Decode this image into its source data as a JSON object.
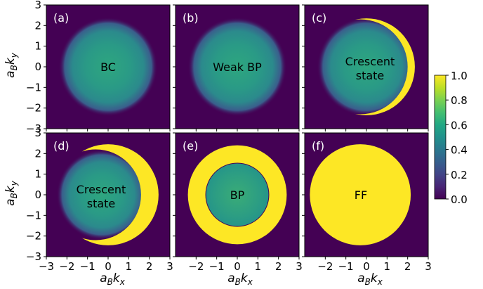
{
  "chart_data": [
    {
      "type": "heatmap",
      "panel_label": "(a)",
      "annotation": [
        "BC"
      ],
      "xlim": [
        -3,
        3
      ],
      "ylim": [
        -3,
        3
      ],
      "pattern": "gaussian disk centered at origin, no saturated region",
      "disk": {
        "center": [
          0,
          0
        ],
        "radius": 2.4,
        "center_value": 0.33
      }
    },
    {
      "type": "heatmap",
      "panel_label": "(b)",
      "annotation": [
        "Weak BP"
      ],
      "xlim": [
        -3,
        3
      ],
      "ylim": [
        -3,
        3
      ],
      "pattern": "gaussian disk centered at origin, no saturated region",
      "disk": {
        "center": [
          0,
          0
        ],
        "radius": 2.4,
        "center_value": 0.33
      }
    },
    {
      "type": "heatmap",
      "panel_label": "(c)",
      "annotation": [
        "Crescent",
        "state"
      ],
      "xlim": [
        -3,
        3
      ],
      "ylim": [
        -3,
        3
      ],
      "pattern": "gaussian disk with small saturated sliver on the right edge",
      "disk": {
        "center": [
          0,
          0
        ],
        "radius": 2.4,
        "center_value": 0.33
      },
      "saturated_region": {
        "kind": "crescent",
        "outer_radius": 2.35,
        "inner_circle_center": [
          -0.3,
          0
        ],
        "inner_radius": 2.3,
        "value": 1.0
      }
    },
    {
      "type": "heatmap",
      "panel_label": "(d)",
      "annotation": [
        "Crescent",
        "state"
      ],
      "xlim": [
        -3,
        3
      ],
      "ylim": [
        -3,
        3
      ],
      "pattern": "gaussian disk with large saturated crescent on the right side",
      "disk": {
        "center": [
          -0.3,
          0
        ],
        "radius": 2.2,
        "center_value": 0.4
      },
      "saturated_region": {
        "kind": "crescent",
        "outer_radius": 2.45,
        "inner_circle_center": [
          -0.6,
          0
        ],
        "inner_radius": 2.2,
        "value": 1.0
      }
    },
    {
      "type": "heatmap",
      "panel_label": "(e)",
      "annotation": [
        "BP"
      ],
      "xlim": [
        -3,
        3
      ],
      "ylim": [
        -3,
        3
      ],
      "pattern": "saturated ring surrounding a lower-valued core",
      "disk": {
        "center": [
          0,
          0
        ],
        "radius": 1.5,
        "center_value": 0.45
      },
      "saturated_region": {
        "kind": "ring",
        "inner_radius": 1.55,
        "outer_radius": 2.4,
        "value": 1.0
      }
    },
    {
      "type": "heatmap",
      "panel_label": "(f)",
      "annotation": [
        "FF"
      ],
      "xlim": [
        -3,
        3
      ],
      "ylim": [
        -3,
        3
      ],
      "pattern": "fully saturated disk centered slightly left of origin",
      "saturated_region": {
        "kind": "disk",
        "center": [
          -0.3,
          0
        ],
        "radius": 2.45,
        "value": 1.0
      }
    }
  ],
  "x_axis": {
    "label_base": "a",
    "label_base_sub": "B",
    "label_main": "k",
    "label_main_sub": "x",
    "ticks_full": [
      "−3",
      "−2",
      "−1",
      "0",
      "1",
      "2",
      "3"
    ],
    "ticks_short": [
      "−2",
      "−1",
      "0",
      "1",
      "2",
      "3"
    ]
  },
  "y_axis": {
    "label_base": "a",
    "label_base_sub": "B",
    "label_main": "k",
    "label_main_sub": "y",
    "ticks": [
      "3",
      "2",
      "1",
      "0",
      "−1",
      "−2",
      "−3"
    ]
  },
  "colorbar": {
    "colormap": "viridis",
    "range": [
      0,
      1
    ],
    "tick_labels": [
      "1.0",
      "0.8",
      "0.6",
      "0.4",
      "0.2",
      "0.0"
    ]
  },
  "colors": {
    "low": "#440154",
    "mid": "#21918c",
    "high": "#fde725"
  }
}
